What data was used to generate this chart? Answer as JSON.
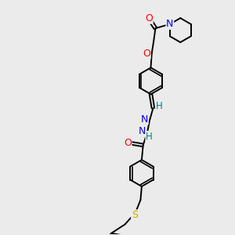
{
  "background_color": "#ebebeb",
  "bond_color": "#000000",
  "bond_width": 1.4,
  "atom_colors": {
    "O": "#ff0000",
    "N": "#0000ff",
    "S": "#ccaa00",
    "H": "#008080",
    "C": "#000000"
  },
  "font_size_atom": 8.5,
  "fig_width": 3.0,
  "fig_height": 3.0,
  "dpi": 100,
  "xlim": [
    0,
    10
  ],
  "ylim": [
    0,
    10
  ]
}
